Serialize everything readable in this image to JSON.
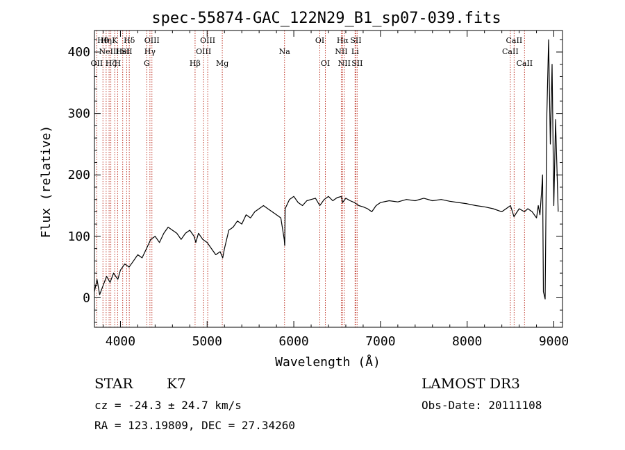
{
  "chart_data": {
    "type": "line",
    "title": "spec-55874-GAC_122N29_B1_sp07-039.fits",
    "xlabel": "Wavelength (Å)",
    "ylabel": "Flux (relative)",
    "xlim": [
      3700,
      9100
    ],
    "ylim": [
      -48,
      435
    ],
    "x_ticks": [
      4000,
      5000,
      6000,
      7000,
      8000,
      9000
    ],
    "y_ticks": [
      0,
      100,
      200,
      300,
      400
    ],
    "x_tick_labels": [
      "4000",
      "5000",
      "6000",
      "7000",
      "8000",
      "9000"
    ],
    "y_tick_labels": [
      "0",
      "100",
      "200",
      "300",
      "400"
    ],
    "line_color": "#000000",
    "marker_color": "#c0392b",
    "spectrum": {
      "x": [
        3700,
        3730,
        3760,
        3800,
        3840,
        3880,
        3920,
        3970,
        4000,
        4050,
        4100,
        4150,
        4200,
        4250,
        4300,
        4350,
        4400,
        4450,
        4500,
        4550,
        4600,
        4650,
        4700,
        4750,
        4800,
        4850,
        4870,
        4900,
        4950,
        5000,
        5050,
        5100,
        5150,
        5180,
        5200,
        5250,
        5300,
        5350,
        5400,
        5450,
        5500,
        5550,
        5600,
        5650,
        5700,
        5750,
        5800,
        5850,
        5890,
        5895,
        5900,
        5950,
        6000,
        6050,
        6100,
        6150,
        6200,
        6250,
        6300,
        6350,
        6400,
        6450,
        6500,
        6550,
        6563,
        6600,
        6650,
        6700,
        6750,
        6800,
        6850,
        6900,
        6950,
        7000,
        7100,
        7200,
        7300,
        7400,
        7500,
        7600,
        7700,
        7800,
        7900,
        8000,
        8100,
        8200,
        8300,
        8400,
        8500,
        8540,
        8600,
        8660,
        8700,
        8750,
        8800,
        8820,
        8840,
        8860,
        8870,
        8880,
        8900,
        8920,
        8940,
        8960,
        8980,
        9000,
        9020,
        9050
      ],
      "y": [
        10,
        30,
        5,
        20,
        35,
        25,
        40,
        30,
        45,
        55,
        50,
        60,
        70,
        65,
        80,
        95,
        100,
        90,
        105,
        115,
        110,
        105,
        95,
        105,
        110,
        100,
        90,
        105,
        95,
        90,
        80,
        70,
        75,
        65,
        80,
        110,
        115,
        125,
        120,
        135,
        130,
        140,
        145,
        150,
        145,
        140,
        135,
        130,
        95,
        85,
        145,
        160,
        165,
        155,
        150,
        158,
        160,
        162,
        150,
        160,
        165,
        158,
        163,
        165,
        155,
        162,
        158,
        155,
        150,
        148,
        145,
        140,
        150,
        155,
        158,
        156,
        160,
        158,
        162,
        158,
        160,
        157,
        155,
        153,
        150,
        148,
        145,
        140,
        150,
        132,
        145,
        140,
        145,
        140,
        130,
        150,
        135,
        175,
        200,
        10,
        -2,
        300,
        420,
        250,
        380,
        150,
        290,
        140
      ]
    },
    "line_markers": [
      {
        "x": 3727,
        "label": "OII",
        "row": 3
      },
      {
        "x": 3798,
        "label": "Hθ",
        "row": 1
      },
      {
        "x": 3835,
        "label": "Hη",
        "row": 1
      },
      {
        "x": 3869,
        "label": "NeIII",
        "row": 2
      },
      {
        "x": 3889,
        "label": "Hζ",
        "row": 3
      },
      {
        "x": 3934,
        "label": "K",
        "row": 1
      },
      {
        "x": 3968,
        "label": "H",
        "row": 3
      },
      {
        "x": 4026,
        "label": "HeI",
        "row": 2
      },
      {
        "x": 4072,
        "label": "SII",
        "row": 2
      },
      {
        "x": 4102,
        "label": "Hδ",
        "row": 1
      },
      {
        "x": 4304,
        "label": "G",
        "row": 3
      },
      {
        "x": 4340,
        "label": "Hγ",
        "row": 2
      },
      {
        "x": 4363,
        "label": "OIII",
        "row": 1
      },
      {
        "x": 4861,
        "label": "Hβ",
        "row": 3
      },
      {
        "x": 4959,
        "label": "OIII",
        "row": 2
      },
      {
        "x": 5007,
        "label": "OIII",
        "row": 1
      },
      {
        "x": 5175,
        "label": "Mg",
        "row": 3
      },
      {
        "x": 5893,
        "label": "Na",
        "row": 2
      },
      {
        "x": 6300,
        "label": "OI",
        "row": 1
      },
      {
        "x": 6364,
        "label": "OI",
        "row": 3
      },
      {
        "x": 6548,
        "label": "NII",
        "row": 2
      },
      {
        "x": 6563,
        "label": "Hα",
        "row": 1
      },
      {
        "x": 6583,
        "label": "NII",
        "row": 3
      },
      {
        "x": 6707,
        "label": "Li",
        "row": 2
      },
      {
        "x": 6716,
        "label": "SII",
        "row": 1
      },
      {
        "x": 6731,
        "label": "SII",
        "row": 3
      },
      {
        "x": 8498,
        "label": "CaII",
        "row": 2
      },
      {
        "x": 8542,
        "label": "CaII",
        "row": 1
      },
      {
        "x": 8662,
        "label": "CaII",
        "row": 3
      }
    ]
  },
  "info": {
    "class": "STAR",
    "subclass": "K7",
    "survey": "LAMOST DR3",
    "redshift": "cz = -24.3 ± 24.7 km/s",
    "obs_date": "Obs-Date: 20111108",
    "coords": "RA = 123.19809, DEC =  27.34260"
  }
}
